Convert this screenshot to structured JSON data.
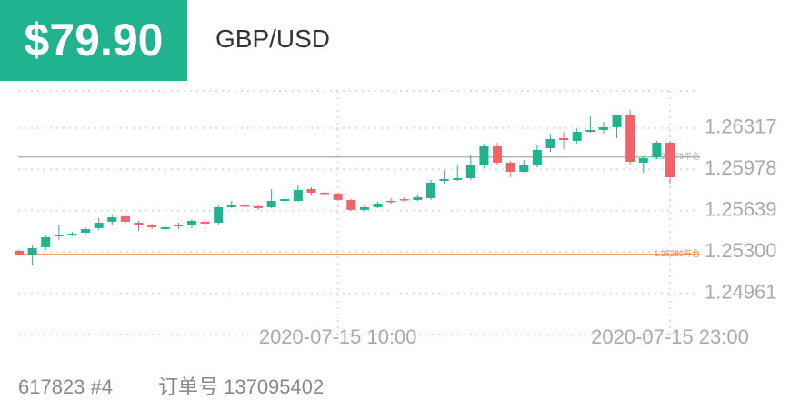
{
  "header": {
    "price": "$79.90",
    "symbol": "GBP/USD"
  },
  "chart_data": {
    "type": "candlestick",
    "categories": [
      null,
      null,
      null,
      null,
      null,
      null,
      null,
      null,
      null,
      null,
      null,
      null,
      null,
      null,
      null,
      null,
      null,
      null,
      null,
      null,
      null,
      null,
      null,
      null,
      "2020-07-15 10:00",
      null,
      null,
      null,
      null,
      null,
      null,
      null,
      null,
      null,
      null,
      null,
      null,
      null,
      null,
      null,
      null,
      null,
      null,
      null,
      null,
      null,
      null,
      null,
      null,
      "2020-07-15 23:00"
    ],
    "open": [
      1.25309,
      1.25279,
      1.25339,
      1.25428,
      1.25436,
      1.25458,
      1.25496,
      1.25548,
      1.25593,
      1.2554,
      1.25518,
      1.25488,
      1.2551,
      1.25518,
      1.25548,
      1.2554,
      1.25667,
      1.25682,
      1.25675,
      1.25667,
      1.25719,
      1.25719,
      1.25816,
      1.25786,
      1.25779,
      1.25727,
      1.25645,
      1.25667,
      1.25719,
      1.25734,
      1.25727,
      1.25742,
      1.25883,
      1.25891,
      1.25906,
      1.2601,
      1.26167,
      1.26033,
      1.25958,
      1.2601,
      1.26152,
      1.26234,
      1.26212,
      1.26286,
      1.26301,
      1.26324,
      1.26421,
      1.26033,
      1.26077,
      1.26197
    ],
    "high": [
      1.25316,
      1.25354,
      1.25443,
      1.25518,
      1.25466,
      1.25503,
      1.25578,
      1.25607,
      1.25607,
      1.25555,
      1.25533,
      1.25518,
      1.2554,
      1.2557,
      1.25578,
      1.25682,
      1.25719,
      1.25689,
      1.25682,
      1.25816,
      1.25749,
      1.25846,
      1.25831,
      1.25794,
      1.25786,
      1.25734,
      1.25682,
      1.25712,
      1.25742,
      1.25749,
      1.25772,
      1.25891,
      1.25973,
      1.26018,
      1.261,
      1.26189,
      1.26197,
      1.26048,
      1.26055,
      1.26174,
      1.26271,
      1.26286,
      1.26316,
      1.26413,
      1.26368,
      1.26428,
      1.26465,
      1.26085,
      1.26212,
      1.26212
    ],
    "low": [
      1.25272,
      1.2519,
      1.25316,
      1.25399,
      1.25428,
      1.25443,
      1.25481,
      1.25518,
      1.25525,
      1.25473,
      1.25488,
      1.25473,
      1.25488,
      1.25496,
      1.25466,
      1.25518,
      1.2566,
      1.2566,
      1.25645,
      1.2566,
      1.25697,
      1.25712,
      1.25764,
      1.25772,
      1.25719,
      1.25637,
      1.2563,
      1.2566,
      1.25697,
      1.25712,
      1.25719,
      1.25727,
      1.25861,
      1.25883,
      1.25891,
      1.25988,
      1.2601,
      1.25913,
      1.25951,
      1.25995,
      1.26122,
      1.26145,
      1.26189,
      1.26279,
      1.26271,
      1.26234,
      1.26018,
      1.25951,
      1.26062,
      1.25861
    ],
    "close": [
      1.25279,
      1.25331,
      1.25421,
      1.25443,
      1.25451,
      1.25488,
      1.2554,
      1.25585,
      1.25548,
      1.25518,
      1.25503,
      1.25503,
      1.25525,
      1.25555,
      1.25533,
      1.25667,
      1.25682,
      1.25675,
      1.2566,
      1.25719,
      1.25734,
      1.25809,
      1.25786,
      1.25779,
      1.25727,
      1.25645,
      1.25667,
      1.25697,
      1.25712,
      1.25727,
      1.25749,
      1.25869,
      1.25898,
      1.25906,
      1.2601,
      1.26167,
      1.26033,
      1.25958,
      1.2601,
      1.26137,
      1.26227,
      1.26219,
      1.26286,
      1.26301,
      1.26324,
      1.26421,
      1.2604,
      1.2607,
      1.26197,
      1.25913
    ],
    "up_color": "#1fb38f",
    "down_color": "#f06469",
    "ylim": [
      1.24622,
      1.26622
    ],
    "yticks": [
      1.26317,
      1.25978,
      1.25639,
      {
        "value": 1.253,
        "label": "1.25300"
      },
      1.24961
    ],
    "grid": true,
    "lines": [
      {
        "value": 1.26079,
        "label": "1.26079平仓",
        "color": "#aaaaaa"
      },
      {
        "value": 1.2528,
        "label": "1.25280开仓",
        "color": "#f0834a"
      }
    ]
  },
  "footer": {
    "account": "617823 #4",
    "order": "订单号 137095402"
  }
}
